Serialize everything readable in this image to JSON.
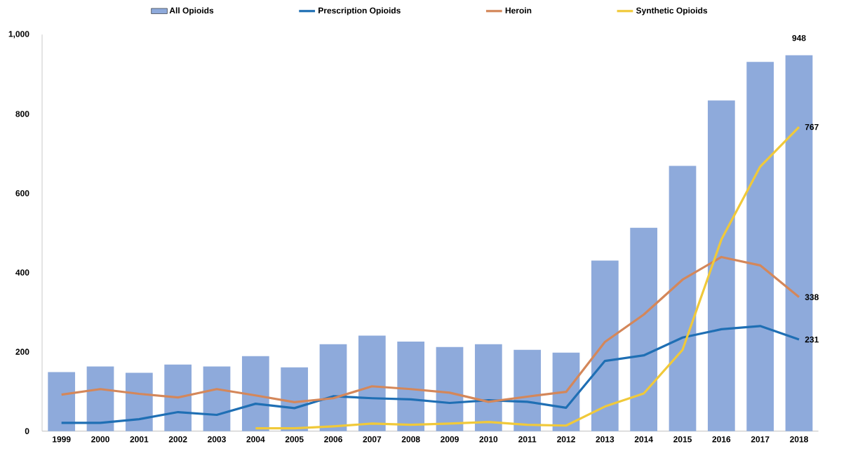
{
  "chart_data": {
    "type": "bar",
    "categories": [
      "1999",
      "2000",
      "2001",
      "2002",
      "2003",
      "2004",
      "2005",
      "2006",
      "2007",
      "2008",
      "2009",
      "2010",
      "2011",
      "2012",
      "2013",
      "2014",
      "2015",
      "2016",
      "2017",
      "2018"
    ],
    "series": [
      {
        "name": "All Opioids",
        "color": "#8eaadb",
        "values": [
          149,
          163,
          147,
          168,
          163,
          189,
          161,
          219,
          241,
          226,
          212,
          219,
          205,
          198,
          430,
          513,
          669,
          834,
          931,
          948
        ],
        "value_labels": [
          null,
          null,
          null,
          null,
          null,
          null,
          null,
          null,
          null,
          null,
          null,
          null,
          null,
          null,
          null,
          null,
          null,
          null,
          null,
          "948"
        ]
      },
      {
        "name": "Prescription Opioids",
        "type": "line",
        "color": "#1f6fb4",
        "values": [
          21,
          21,
          30,
          48,
          41,
          69,
          58,
          88,
          83,
          80,
          71,
          78,
          74,
          59,
          177,
          191,
          236,
          257,
          265,
          231
        ],
        "value_labels": [
          null,
          null,
          null,
          null,
          null,
          null,
          null,
          null,
          null,
          null,
          null,
          null,
          null,
          null,
          null,
          null,
          null,
          null,
          null,
          "231"
        ]
      },
      {
        "name": "Heroin",
        "type": "line",
        "color": "#d4875a",
        "values": [
          92,
          106,
          94,
          85,
          106,
          90,
          73,
          83,
          113,
          106,
          97,
          74,
          87,
          99,
          225,
          294,
          382,
          439,
          418,
          338
        ],
        "value_labels": [
          null,
          null,
          null,
          null,
          null,
          null,
          null,
          null,
          null,
          null,
          null,
          null,
          null,
          null,
          null,
          null,
          null,
          null,
          null,
          "338"
        ]
      },
      {
        "name": "Synthetic Opioids",
        "type": "line",
        "color": "#f0c93a",
        "values": [
          null,
          null,
          null,
          null,
          null,
          7,
          7,
          12,
          19,
          16,
          19,
          23,
          16,
          14,
          62,
          95,
          205,
          483,
          667,
          767
        ],
        "value_labels": [
          null,
          null,
          null,
          null,
          null,
          null,
          null,
          null,
          null,
          null,
          null,
          null,
          null,
          null,
          null,
          null,
          null,
          null,
          null,
          "767"
        ]
      }
    ],
    "ylim": [
      0,
      1000
    ],
    "yticks": [
      0,
      200,
      400,
      600,
      800,
      {
        "value": 1000,
        "label": "1,000"
      }
    ],
    "legend": "top",
    "grid": false
  }
}
